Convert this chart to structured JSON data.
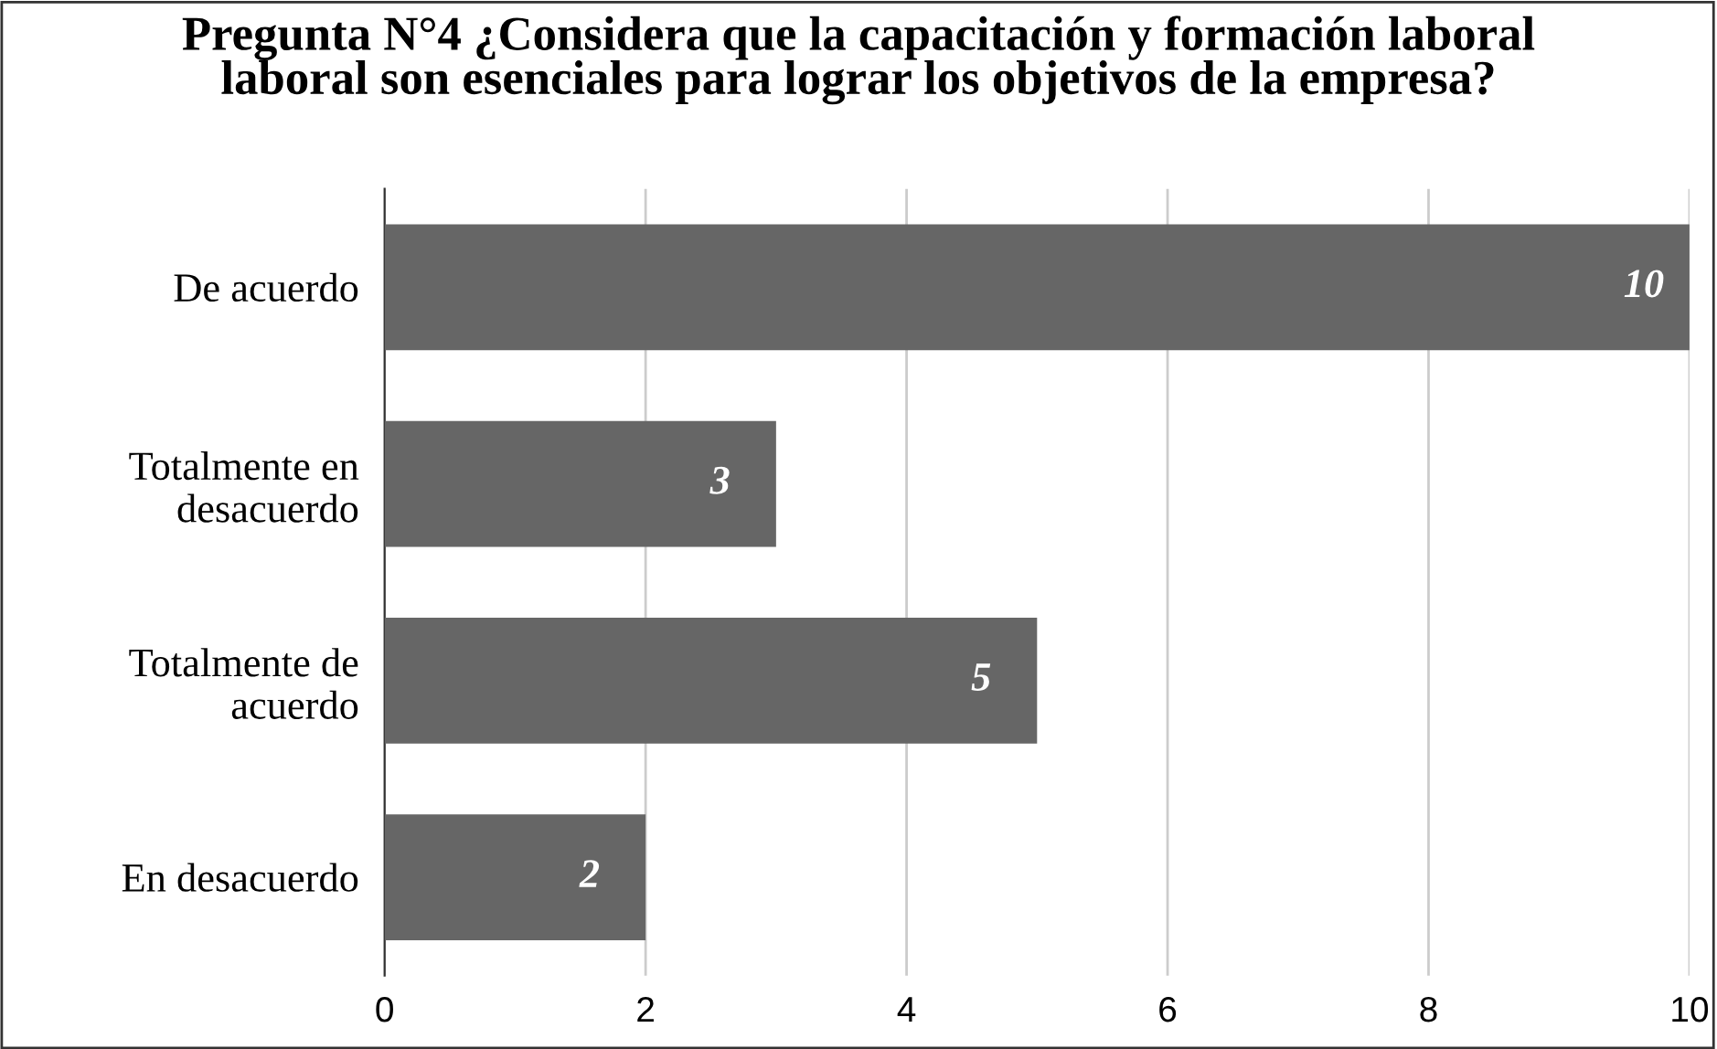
{
  "chart_data": {
    "type": "bar",
    "orientation": "horizontal",
    "title": "Pregunta N°4 ¿Considera que la capacitación y formación laboral\nlaboral son esenciales para lograr los objetivos de la empresa?",
    "categories": [
      "De acuerdo",
      "Totalmente en\ndesacuerdo",
      "Totalmente de\nacuerdo",
      "En desacuerdo"
    ],
    "values": [
      10,
      3,
      5,
      2
    ],
    "color": "#666666",
    "xlim": [
      0,
      10
    ],
    "xticks": [
      0,
      2,
      4,
      6,
      8,
      10
    ],
    "grid": "x",
    "data_labels": true
  }
}
